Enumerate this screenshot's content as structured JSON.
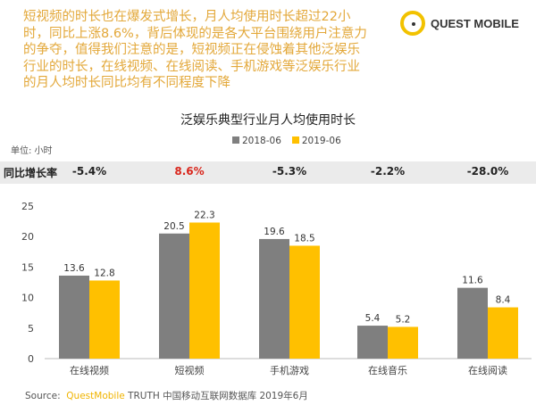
{
  "headline": "短视频的时长也在爆发式增长，月人均使用时长超过22小时，同比上涨8.6%，背后体现的是各大平台围绕用户注意力的争夺，值得我们注意的是，短视频正在侵蚀着其他泛娱乐行业的时长，在线视频、在线阅读、手机游戏等泛娱乐行业的月人均时长同比均有不同程度下降",
  "logo": "QUEST MOBILE",
  "source": {
    "prefix": "Source:",
    "brand": "QuestMobile",
    "text": "TRUTH 中国移动互联网数据库 2019年6月"
  },
  "growth": {
    "label": "同比增长率",
    "values": [
      "-5.4%",
      "8.6%",
      "-5.3%",
      "-2.2%",
      "-28.0%"
    ],
    "highlight_index": 1,
    "highlight_color": "#d9261c"
  },
  "chart_data": {
    "type": "bar",
    "title": "泛娱乐典型行业月人均使用时长",
    "unit_label": "单位: 小时",
    "categories": [
      "在线视频",
      "短视频",
      "手机游戏",
      "在线音乐",
      "在线阅读"
    ],
    "series": [
      {
        "name": "2018-06",
        "color": "#7f7f7f",
        "values": [
          13.6,
          20.5,
          19.6,
          5.4,
          11.6
        ]
      },
      {
        "name": "2019-06",
        "color": "#ffc000",
        "values": [
          12.8,
          22.3,
          18.5,
          5.2,
          8.4
        ]
      }
    ],
    "ylim": [
      0,
      25
    ],
    "yticks": [
      0,
      5,
      10,
      15,
      20,
      25
    ],
    "legend": "top",
    "grid": false
  }
}
